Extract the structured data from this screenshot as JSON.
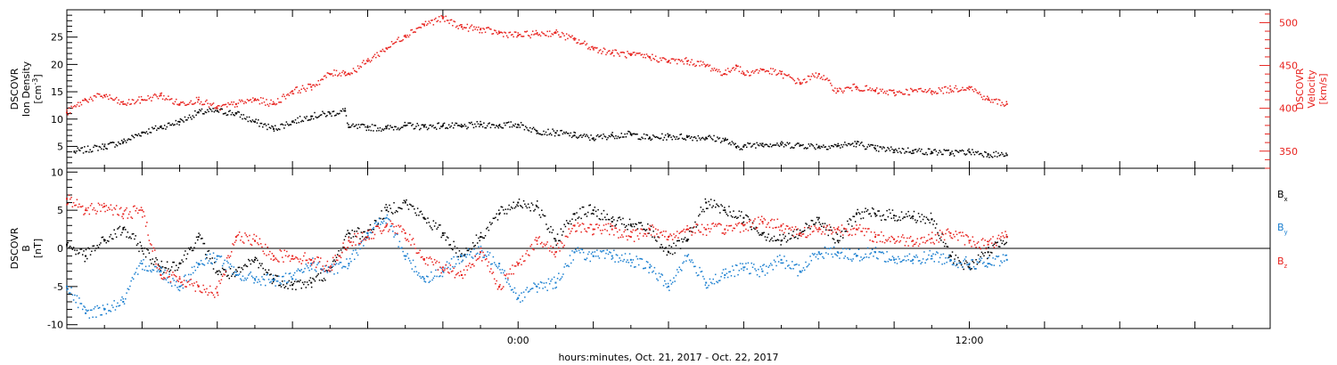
{
  "xlabel": "hours:minutes, Oct. 21, 2017 - Oct. 22, 2017",
  "colors": {
    "black": "#000000",
    "red": "#e8231f",
    "blue": "#1a7fd0"
  },
  "chart_data": [
    {
      "type": "scatter",
      "panel": "plasma",
      "xlim": [
        -12,
        20
      ],
      "x_ticks": [
        {
          "value": 0,
          "label": "0:00"
        },
        {
          "value": 12,
          "label": "12:00"
        }
      ],
      "left_axis": {
        "label_lines": [
          "DSCOVR",
          "Ion Density",
          "[cm^-3]"
        ],
        "ylim": [
          1,
          30
        ],
        "ticks": [
          5,
          10,
          15,
          20,
          25
        ]
      },
      "right_axis": {
        "label_lines": [
          "DSCOVR",
          "Velocity",
          "[km/s]"
        ],
        "ylim": [
          330,
          515
        ],
        "ticks": [
          350,
          400,
          450,
          500
        ]
      },
      "series": [
        {
          "color": "black",
          "axis": "left",
          "x": [
            -11.8,
            -11.0,
            -10.5,
            -10.0,
            -9.5,
            -9.0,
            -8.5,
            -8.0,
            -7.5,
            -7.0,
            -6.5,
            -6.0,
            -5.5,
            -5.0,
            -4.6,
            -4.5,
            -4.0,
            -3.5,
            -3.0,
            -2.5,
            -2.0,
            -1.5,
            -1.0,
            -0.5,
            0.0,
            0.5,
            1.0,
            1.5,
            2.0,
            2.5,
            3.0,
            3.5,
            4.0,
            4.5,
            5.0,
            5.5,
            5.8,
            6.0,
            6.5,
            7.0,
            7.5,
            8.0,
            8.5,
            9.0,
            9.5,
            10.0,
            10.5,
            11.0,
            11.5,
            12.0,
            12.5,
            13.0
          ],
          "y": [
            4.0,
            5.0,
            5.8,
            7.5,
            8.5,
            9.5,
            11.2,
            11.5,
            11.0,
            9.5,
            8.2,
            9.5,
            10.5,
            11.0,
            11.5,
            8.5,
            8.5,
            8.3,
            8.8,
            8.6,
            8.8,
            8.6,
            9.0,
            8.8,
            9.0,
            7.8,
            7.5,
            7.0,
            6.5,
            7.0,
            7.2,
            6.5,
            6.8,
            6.7,
            6.6,
            6.2,
            4.9,
            5.0,
            5.5,
            5.3,
            5.2,
            5.0,
            5.1,
            5.5,
            4.6,
            4.3,
            4.2,
            4.0,
            3.8,
            4.0,
            3.6,
            3.4
          ]
        },
        {
          "color": "red",
          "axis": "right",
          "x": [
            -12.0,
            -11.5,
            -11.0,
            -10.5,
            -10.0,
            -9.5,
            -9.0,
            -8.5,
            -8.0,
            -7.5,
            -7.0,
            -6.5,
            -6.0,
            -5.5,
            -5.0,
            -4.6,
            -4.5,
            -4.0,
            -3.5,
            -3.0,
            -2.5,
            -2.0,
            -1.5,
            -1.0,
            -0.5,
            0.0,
            0.5,
            1.0,
            1.5,
            2.0,
            2.5,
            3.0,
            3.5,
            4.0,
            4.5,
            5.0,
            5.5,
            5.8,
            6.0,
            6.5,
            7.0,
            7.5,
            8.0,
            8.5,
            9.0,
            9.5,
            10.0,
            10.5,
            11.0,
            11.5,
            12.0,
            12.5,
            13.0
          ],
          "y": [
            395,
            410,
            415,
            405,
            410,
            415,
            405,
            410,
            400,
            405,
            410,
            405,
            420,
            425,
            440,
            442,
            440,
            455,
            470,
            485,
            498,
            505,
            495,
            492,
            488,
            485,
            487,
            488,
            480,
            470,
            465,
            462,
            460,
            455,
            455,
            450,
            440,
            450,
            440,
            445,
            440,
            430,
            440,
            420,
            425,
            420,
            418,
            420,
            420,
            422,
            425,
            410,
            405
          ]
        }
      ]
    },
    {
      "type": "scatter",
      "panel": "magnetic_field",
      "xlim": [
        -12,
        20
      ],
      "x_ticks": [
        {
          "value": 0,
          "label": "0:00"
        },
        {
          "value": 12,
          "label": "12:00"
        }
      ],
      "left_axis": {
        "label_lines": [
          "DSCOVR",
          "B",
          "[nT]"
        ],
        "ylim": [
          -10.5,
          10.5
        ],
        "ticks": [
          -10,
          -5,
          0,
          5,
          10
        ]
      },
      "zero_line": true,
      "legend_placement": "right",
      "series": [
        {
          "name": "B_x",
          "color": "black",
          "x": [
            -12.0,
            -11.5,
            -11.0,
            -10.5,
            -10.0,
            -9.5,
            -9.0,
            -8.5,
            -8.0,
            -7.5,
            -7.0,
            -6.5,
            -6.0,
            -5.5,
            -5.0,
            -4.5,
            -4.0,
            -3.5,
            -3.0,
            -2.5,
            -2.0,
            -1.5,
            -1.0,
            -0.5,
            0.0,
            0.5,
            1.0,
            1.5,
            2.0,
            2.5,
            3.0,
            3.5,
            4.0,
            4.5,
            5.0,
            5.5,
            6.0,
            6.5,
            7.0,
            7.5,
            8.0,
            8.5,
            9.0,
            9.5,
            10.0,
            10.5,
            11.0,
            11.5,
            12.0,
            12.5,
            13.0
          ],
          "y": [
            0.5,
            -1.0,
            1.0,
            2.5,
            0.0,
            -2.5,
            -2.0,
            1.5,
            -3.0,
            -3.5,
            -1.5,
            -4.0,
            -4.8,
            -4.5,
            -3.0,
            2.0,
            2.0,
            5.0,
            6.0,
            4.0,
            2.0,
            -1.0,
            1.5,
            4.5,
            6.0,
            5.5,
            1.0,
            4.5,
            5.0,
            3.5,
            3.0,
            2.5,
            -0.5,
            1.0,
            6.0,
            5.0,
            4.0,
            2.0,
            1.0,
            2.0,
            4.0,
            1.0,
            4.5,
            4.5,
            4.3,
            4.2,
            3.8,
            -1.0,
            -2.5,
            -0.5,
            1.5
          ]
        },
        {
          "name": "B_y",
          "color": "blue",
          "x": [
            -12.0,
            -11.5,
            -11.0,
            -10.5,
            -10.0,
            -9.5,
            -9.0,
            -8.5,
            -8.0,
            -7.5,
            -7.0,
            -6.5,
            -6.0,
            -5.5,
            -5.0,
            -4.5,
            -4.0,
            -3.5,
            -3.0,
            -2.5,
            -2.0,
            -1.5,
            -1.0,
            -0.5,
            0.0,
            0.5,
            1.0,
            1.5,
            2.0,
            2.5,
            3.0,
            3.5,
            4.0,
            4.5,
            5.0,
            5.5,
            6.0,
            6.5,
            7.0,
            7.5,
            8.0,
            8.5,
            9.0,
            9.5,
            10.0,
            10.5,
            11.0,
            11.5,
            12.0,
            12.5,
            13.0
          ],
          "y": [
            -5.0,
            -8.5,
            -8.0,
            -7.0,
            -2.0,
            -3.0,
            -5.0,
            -2.0,
            -1.0,
            -3.5,
            -4.0,
            -4.2,
            -4.0,
            -2.0,
            -3.0,
            -2.0,
            2.0,
            4.0,
            -1.0,
            -4.0,
            -3.0,
            -1.0,
            -0.5,
            -2.0,
            -6.5,
            -5.0,
            -4.5,
            -0.5,
            -1.0,
            -1.0,
            -1.5,
            -2.5,
            -5.0,
            -1.0,
            -4.5,
            -3.5,
            -2.5,
            -3.0,
            -1.5,
            -3.0,
            -0.5,
            -0.5,
            -1.0,
            -0.5,
            -1.5,
            -1.5,
            -1.0,
            -1.5,
            -2.0,
            -2.0,
            -1.5
          ]
        },
        {
          "name": "B_z",
          "color": "red",
          "x": [
            -12.0,
            -11.5,
            -11.0,
            -10.5,
            -10.0,
            -9.5,
            -9.0,
            -8.5,
            -8.0,
            -7.5,
            -7.0,
            -6.5,
            -6.0,
            -5.5,
            -5.0,
            -4.5,
            -4.0,
            -3.5,
            -3.0,
            -2.5,
            -2.0,
            -1.5,
            -1.0,
            -0.5,
            0.0,
            0.5,
            1.0,
            1.5,
            2.0,
            2.5,
            3.0,
            3.5,
            4.0,
            4.5,
            5.0,
            5.5,
            6.0,
            6.5,
            7.0,
            7.5,
            8.0,
            8.5,
            9.0,
            9.5,
            10.0,
            10.5,
            11.0,
            11.5,
            12.0,
            12.5,
            13.0
          ],
          "y": [
            6.5,
            5.0,
            5.5,
            4.5,
            5.0,
            -3.5,
            -4.0,
            -5.0,
            -5.8,
            1.5,
            1.0,
            -1.0,
            -1.0,
            -1.5,
            -2.5,
            1.0,
            1.5,
            3.0,
            2.0,
            -1.5,
            -2.5,
            -3.5,
            -0.5,
            -5.0,
            -2.0,
            1.0,
            -0.5,
            3.0,
            2.5,
            2.5,
            1.5,
            2.5,
            1.5,
            2.5,
            2.5,
            2.5,
            3.0,
            3.5,
            3.0,
            2.0,
            2.5,
            2.5,
            2.5,
            1.5,
            1.2,
            1.0,
            1.3,
            2.0,
            1.0,
            0.5,
            1.5
          ]
        }
      ]
    }
  ]
}
